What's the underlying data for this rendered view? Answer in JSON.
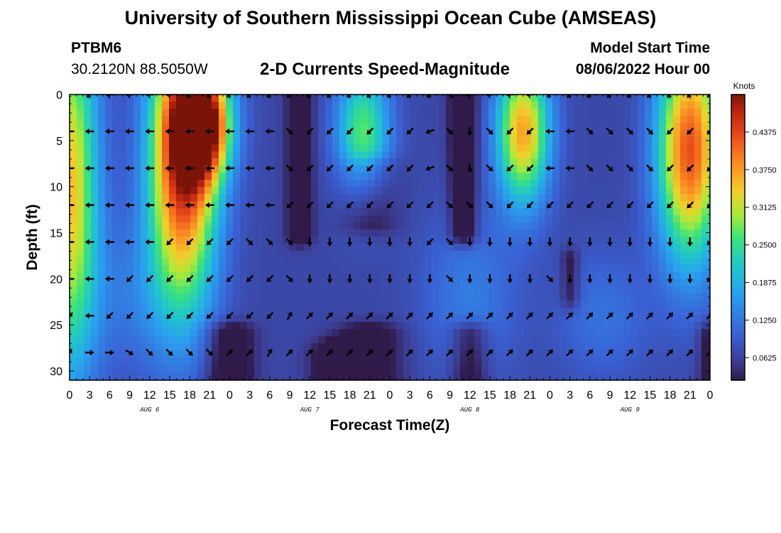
{
  "header": {
    "title": "University of Southern Mississippi Ocean Cube (AMSEAS)",
    "station_id": "PTBM6",
    "station_coords": "30.2120N  88.5050W",
    "subtitle": "2-D Currents Speed-Magnitude",
    "model_start_label": "Model Start Time",
    "model_start_value": "08/06/2022 Hour 00"
  },
  "footer": {
    "title": "University of Southern Mississippi Ocean Cube (AMSEAS)"
  },
  "chart_data": {
    "type": "heatmap",
    "title": "2-D Currents Speed-Magnitude",
    "xlabel": "Forecast Time(Z)",
    "ylabel": "Depth (ft)",
    "xlim": [
      0,
      96
    ],
    "ylim": [
      0,
      31
    ],
    "x_ticks": [
      0,
      3,
      6,
      9,
      12,
      15,
      18,
      21,
      24,
      27,
      30,
      33,
      36,
      39,
      42,
      45,
      48,
      51,
      54,
      57,
      60,
      63,
      66,
      69,
      72,
      75,
      78,
      81,
      84,
      87,
      90,
      93,
      96
    ],
    "x_tick_labels": [
      "0",
      "3",
      "6",
      "9",
      "12",
      "15",
      "18",
      "21",
      "0",
      "3",
      "6",
      "9",
      "12",
      "15",
      "18",
      "21",
      "0",
      "3",
      "6",
      "9",
      "12",
      "15",
      "18",
      "21",
      "0",
      "3",
      "6",
      "9",
      "12",
      "15",
      "18",
      "21",
      "0"
    ],
    "day_labels": [
      {
        "x": 12,
        "label": "AUG 6"
      },
      {
        "x": 36,
        "label": "AUG 7"
      },
      {
        "x": 60,
        "label": "AUG 8"
      },
      {
        "x": 84,
        "label": "AUG 9"
      }
    ],
    "y_ticks": [
      0,
      5,
      10,
      15,
      20,
      25,
      30
    ],
    "y_tick_labels": [
      "0",
      "5",
      "10",
      "15",
      "20",
      "25",
      "30"
    ],
    "colorbar": {
      "label": "Knots",
      "min": 0.025,
      "max": 0.5,
      "ticks": [
        0.4375,
        0.375,
        0.3125,
        0.25,
        0.1875,
        0.125,
        0.0625
      ],
      "tick_labels": [
        "0.4375",
        "0.3750",
        "0.3125",
        "0.2500",
        "0.1875",
        "0.1250",
        "0.0625"
      ]
    },
    "features": [
      {
        "t": 0,
        "d": 10,
        "sigT": 3,
        "sigD": 14,
        "amp": 0.28
      },
      {
        "t": 17,
        "d": 7,
        "sigT": 3.6,
        "sigD": 11,
        "amp": 0.4
      },
      {
        "t": 20,
        "d": 2,
        "sigT": 3,
        "sigD": 4,
        "amp": 0.14
      },
      {
        "t": 20,
        "d": 4,
        "sigT": 2.8,
        "sigD": 4,
        "amp": 0.24
      },
      {
        "t": 44,
        "d": 4,
        "sigT": 2.8,
        "sigD": 5,
        "amp": 0.2
      },
      {
        "t": 68,
        "d": 4,
        "sigT": 2.8,
        "sigD": 5.5,
        "amp": 0.3
      },
      {
        "t": 93,
        "d": 6,
        "sigT": 3.4,
        "sigD": 8.5,
        "amp": 0.36
      },
      {
        "t": 60,
        "d": 22,
        "sigT": 5,
        "sigD": 7,
        "amp": 0.06
      },
      {
        "t": 80,
        "d": 24,
        "sigT": 5,
        "sigD": 5,
        "amp": 0.05
      },
      {
        "t": 10,
        "d": 22,
        "sigT": 6,
        "sigD": 6,
        "amp": 0.05
      }
    ],
    "troughs": [
      {
        "t": 34.5,
        "w": 1.3,
        "d0": 0,
        "d1": 15,
        "depth": 0.1
      },
      {
        "t": 59,
        "w": 1.4,
        "d0": 0,
        "d1": 15,
        "depth": 0.11
      },
      {
        "t": 40,
        "w": 2.5,
        "d0": 28,
        "d1": 31,
        "depth": 0.09
      },
      {
        "t": 24,
        "w": 2.5,
        "d0": 26,
        "d1": 31,
        "depth": 0.09
      },
      {
        "t": 45,
        "w": 3.5,
        "d0": 26,
        "d1": 31,
        "depth": 0.07
      },
      {
        "t": 60,
        "w": 2,
        "d0": 26,
        "d1": 31,
        "depth": 0.08
      },
      {
        "t": 96,
        "w": 1.2,
        "d0": 26,
        "d1": 31,
        "depth": 0.07
      },
      {
        "t": 75,
        "w": 1,
        "d0": 18,
        "d1": 22,
        "depth": 0.06
      },
      {
        "t": 45,
        "w": 3,
        "d0": 8,
        "d1": 14,
        "depth": 0.06
      }
    ],
    "base_speed": 0.07,
    "arrow_depths": [
      0,
      4,
      8,
      12,
      16,
      20,
      24,
      28
    ],
    "arrow_times": [
      0,
      3,
      6,
      9,
      12,
      15,
      18,
      21,
      24,
      27,
      30,
      33,
      36,
      39,
      42,
      45,
      48,
      51,
      54,
      57,
      60,
      63,
      66,
      69,
      72,
      75,
      78,
      81,
      84,
      87,
      90,
      93,
      96
    ],
    "arrow_angles_deg": {
      "0": [
        225,
        225,
        180,
        180,
        180,
        180,
        225,
        225,
        225,
        225,
        225,
        225,
        225,
        225,
        225,
        225,
        225,
        225,
        225,
        135,
        180,
        180,
        180,
        180,
        225,
        225,
        225,
        225,
        225,
        225,
        225,
        225,
        225
      ],
      "4": [
        180,
        180,
        180,
        180,
        180,
        180,
        180,
        180,
        180,
        180,
        180,
        315,
        225,
        225,
        225,
        225,
        225,
        225,
        200,
        315,
        270,
        315,
        225,
        225,
        180,
        180,
        315,
        315,
        315,
        315,
        225,
        225,
        225
      ],
      "8": [
        180,
        180,
        180,
        180,
        180,
        180,
        180,
        180,
        180,
        180,
        180,
        315,
        225,
        225,
        225,
        225,
        225,
        225,
        200,
        315,
        280,
        315,
        225,
        225,
        180,
        180,
        315,
        315,
        315,
        315,
        225,
        225,
        225
      ],
      "12": [
        180,
        180,
        180,
        180,
        180,
        180,
        180,
        180,
        180,
        180,
        180,
        225,
        225,
        225,
        225,
        225,
        225,
        225,
        225,
        315,
        315,
        315,
        225,
        225,
        225,
        225,
        225,
        225,
        225,
        225,
        225,
        225,
        225
      ],
      "16": [
        180,
        180,
        180,
        180,
        180,
        225,
        225,
        225,
        225,
        315,
        315,
        315,
        270,
        270,
        270,
        270,
        270,
        270,
        225,
        315,
        270,
        270,
        270,
        270,
        270,
        270,
        270,
        270,
        270,
        270,
        270,
        270,
        225
      ],
      "20": [
        180,
        180,
        180,
        225,
        225,
        225,
        225,
        225,
        225,
        225,
        225,
        315,
        270,
        270,
        270,
        270,
        270,
        270,
        270,
        315,
        270,
        270,
        270,
        270,
        315,
        270,
        270,
        270,
        270,
        270,
        270,
        270,
        225
      ],
      "24": [
        45,
        180,
        225,
        225,
        225,
        225,
        225,
        225,
        225,
        225,
        225,
        60,
        45,
        45,
        45,
        45,
        45,
        45,
        45,
        45,
        45,
        45,
        45,
        45,
        45,
        45,
        45,
        45,
        45,
        45,
        45,
        45,
        45
      ],
      "28": [
        60,
        0,
        0,
        330,
        315,
        315,
        315,
        315,
        45,
        45,
        60,
        45,
        45,
        45,
        45,
        45,
        45,
        45,
        45,
        45,
        45,
        45,
        45,
        45,
        45,
        45,
        45,
        45,
        45,
        45,
        45,
        45,
        45
      ]
    }
  }
}
